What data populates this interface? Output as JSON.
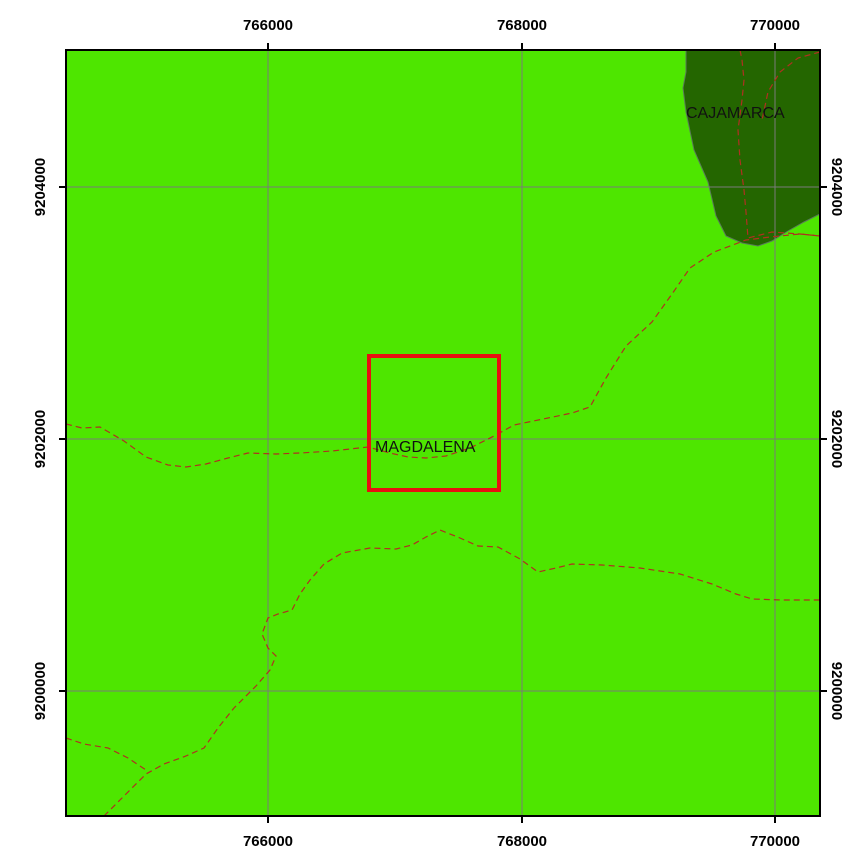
{
  "map": {
    "colors": {
      "background": "#ffffff",
      "land": "#4ee600",
      "region_dark": "#246600",
      "region_outline": "#5a7a5a",
      "grid": "#7a7a7a",
      "road": "#b03020",
      "highlight_box": "#e81010",
      "frame": "#000000"
    },
    "x_ticks": [
      "766000",
      "768000",
      "770000"
    ],
    "y_ticks": [
      "9204000",
      "9202000",
      "9200000"
    ],
    "places": {
      "cajamarca": "CAJAMARCA",
      "magdalena": "MAGDALENA"
    }
  }
}
